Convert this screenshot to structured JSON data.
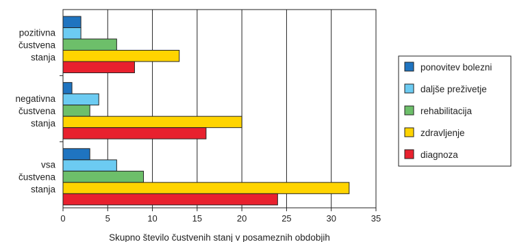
{
  "chart_data": {
    "type": "bar",
    "orientation": "horizontal",
    "title": "",
    "xlabel": "Skupno število čustvenih stanj v posameznih obdobjih",
    "ylabel": "",
    "xlim": [
      0,
      35
    ],
    "xticks": [
      0,
      5,
      10,
      15,
      20,
      25,
      30,
      35
    ],
    "grid": true,
    "legend_position": "right",
    "categories": [
      [
        "pozitivna",
        "čustvena",
        "stanja"
      ],
      [
        "negativna",
        "čustvena",
        "stanja"
      ],
      [
        "vsa",
        "čustvena",
        "stanja"
      ]
    ],
    "series": [
      {
        "name": "ponovitev bolezni",
        "color": "#1f74c0",
        "values": [
          2,
          1,
          3
        ]
      },
      {
        "name": "daljše preživetje",
        "color": "#6ccbf2",
        "values": [
          2,
          4,
          6
        ]
      },
      {
        "name": "rehabilitacija",
        "color": "#6dbf6a",
        "values": [
          6,
          3,
          9
        ]
      },
      {
        "name": "zdravljenje",
        "color": "#ffd400",
        "values": [
          13,
          20,
          32
        ]
      },
      {
        "name": "diagnoza",
        "color": "#e8212e",
        "values": [
          8,
          16,
          24
        ]
      }
    ]
  }
}
